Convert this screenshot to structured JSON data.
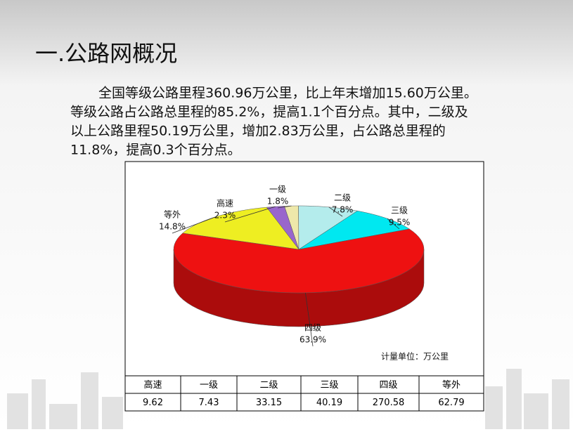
{
  "title": "一.公路网概况",
  "paragraph": [
    "全国等级公路里程360.96万公里，比上年末增加15.60万公里。",
    "等级公路占公路总里程的85.2%，提高1.1个百分点。其中，二级及",
    "以上公路里程50.19万公里，增加2.83万公里，占公路总里程的",
    "11.8%，提高0.3个百分点。"
  ],
  "chart_data": {
    "type": "pie",
    "categories": [
      "高速",
      "一级",
      "二级",
      "三级",
      "四级",
      "等外"
    ],
    "values": [
      2.3,
      1.8,
      7.8,
      9.5,
      63.9,
      14.8
    ],
    "value_labels": [
      "2.3%",
      "1.8%",
      "7.8%",
      "9.5%",
      "63.9%",
      "14.8%"
    ],
    "colors": [
      "#9966cc",
      "#eee8aa",
      "#b4ecec",
      "#00e8f0",
      "#ee1111",
      "#eeee22"
    ],
    "annotation": "计量单位：万公里"
  },
  "table": {
    "values": [
      9.62,
      7.43,
      33.15,
      40.19,
      270.58,
      62.79
    ]
  }
}
